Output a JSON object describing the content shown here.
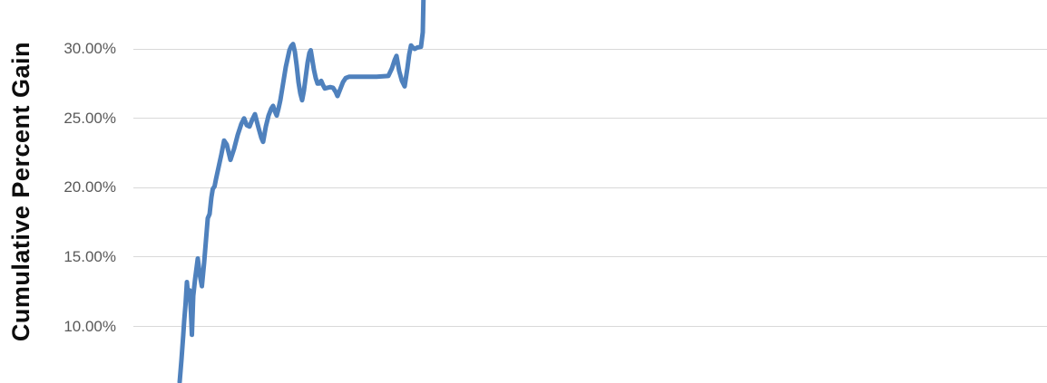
{
  "chart_data": {
    "type": "line",
    "title": "",
    "xlabel": "",
    "ylabel": "Cumulative Percent Gain",
    "x_axis_visible": false,
    "grid": true,
    "legend": "none",
    "y_ticks": [
      {
        "value": 30,
        "label": "30.00%"
      },
      {
        "value": 25,
        "label": "25.00%"
      },
      {
        "value": 20,
        "label": "20.00%"
      },
      {
        "value": 15,
        "label": "15.00%"
      },
      {
        "value": 10,
        "label": "10.00%"
      }
    ],
    "y_visible_range_pct": [
      6.0,
      33.5
    ],
    "colors": {
      "line": "#4f81bd",
      "gridline": "#d9d9d9",
      "tick_label": "#595959",
      "axis_title": "#0d0d0d",
      "background": "#ffffff"
    },
    "series": [
      {
        "name": "Cumulative Percent Gain",
        "color": "#4f81bd",
        "note": "x axis labels not visible in crop; x given as pixel offset, y as percent",
        "points": [
          [
            198,
            6.0
          ],
          [
            200,
            7.6
          ],
          [
            202,
            9.4
          ],
          [
            203,
            10.4
          ],
          [
            204.5,
            11.6
          ],
          [
            206,
            13.2
          ],
          [
            207.5,
            12.1
          ],
          [
            209,
            12.6
          ],
          [
            210.5,
            11.0
          ],
          [
            211.5,
            9.4
          ],
          [
            213,
            12.2
          ],
          [
            215,
            13.4
          ],
          [
            218,
            14.9
          ],
          [
            220,
            13.8
          ],
          [
            222.5,
            12.9
          ],
          [
            225,
            14.6
          ],
          [
            227,
            16.2
          ],
          [
            229,
            17.8
          ],
          [
            231,
            18.1
          ],
          [
            233,
            19.3
          ],
          [
            234.5,
            19.9
          ],
          [
            236.5,
            20.1
          ],
          [
            238,
            20.6
          ],
          [
            241,
            21.5
          ],
          [
            244,
            22.4
          ],
          [
            247,
            23.4
          ],
          [
            250,
            23.1
          ],
          [
            254,
            22.0
          ],
          [
            258,
            22.8
          ],
          [
            262,
            23.8
          ],
          [
            266,
            24.6
          ],
          [
            269,
            25.0
          ],
          [
            272,
            24.5
          ],
          [
            275,
            24.4
          ],
          [
            278,
            24.9
          ],
          [
            281,
            25.3
          ],
          [
            285,
            24.3
          ],
          [
            288,
            23.6
          ],
          [
            290,
            23.3
          ],
          [
            293,
            24.4
          ],
          [
            296,
            25.2
          ],
          [
            299,
            25.7
          ],
          [
            301,
            25.9
          ],
          [
            303,
            25.5
          ],
          [
            305,
            25.2
          ],
          [
            307,
            25.7
          ],
          [
            309,
            26.3
          ],
          [
            311,
            27.1
          ],
          [
            313,
            27.9
          ],
          [
            315,
            28.7
          ],
          [
            317,
            29.3
          ],
          [
            319,
            29.9
          ],
          [
            321,
            30.2
          ],
          [
            323,
            30.35
          ],
          [
            325,
            29.8
          ],
          [
            327,
            28.8
          ],
          [
            329,
            27.6
          ],
          [
            331,
            26.8
          ],
          [
            333,
            26.3
          ],
          [
            335,
            27.0
          ],
          [
            337,
            28.0
          ],
          [
            339,
            29.0
          ],
          [
            341,
            29.7
          ],
          [
            342.5,
            29.9
          ],
          [
            344,
            29.3
          ],
          [
            346,
            28.5
          ],
          [
            348,
            27.9
          ],
          [
            350,
            27.5
          ],
          [
            352,
            27.5
          ],
          [
            354,
            27.7
          ],
          [
            356,
            27.4
          ],
          [
            358,
            27.15
          ],
          [
            361,
            27.2
          ],
          [
            364,
            27.25
          ],
          [
            367,
            27.2
          ],
          [
            370,
            26.9
          ],
          [
            372,
            26.6
          ],
          [
            375,
            27.1
          ],
          [
            378,
            27.6
          ],
          [
            381,
            27.9
          ],
          [
            385,
            28.0
          ],
          [
            400,
            28.0
          ],
          [
            415,
            28.0
          ],
          [
            428,
            28.05
          ],
          [
            432,
            28.6
          ],
          [
            435,
            29.2
          ],
          [
            437,
            29.5
          ],
          [
            440,
            28.4
          ],
          [
            443,
            27.7
          ],
          [
            446,
            27.3
          ],
          [
            449,
            28.6
          ],
          [
            451,
            29.6
          ],
          [
            453,
            30.25
          ],
          [
            455,
            30.1
          ],
          [
            457,
            30.0
          ],
          [
            460,
            30.1
          ],
          [
            464,
            30.15
          ],
          [
            466,
            31.2
          ],
          [
            466.8,
            33.8
          ]
        ]
      }
    ]
  }
}
